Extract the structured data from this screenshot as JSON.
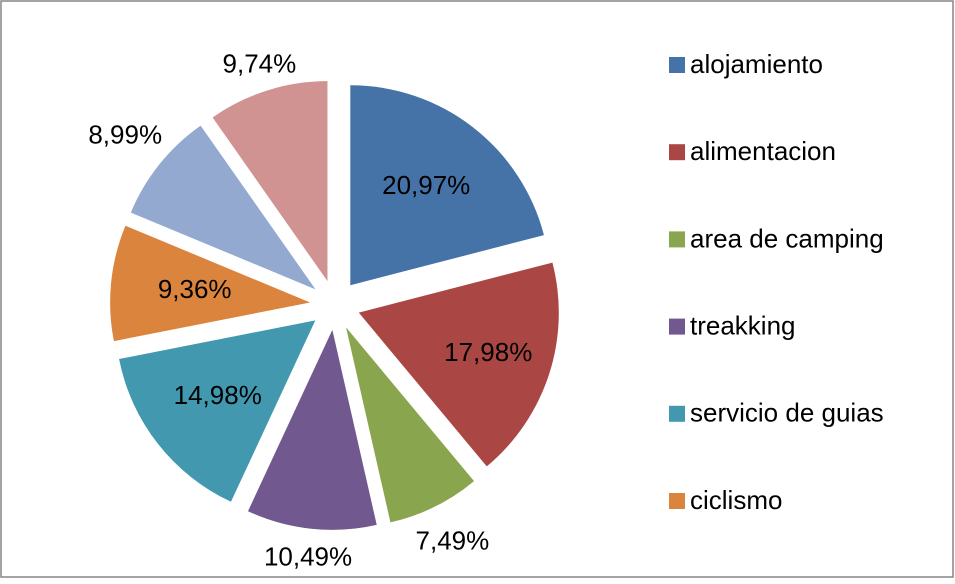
{
  "chart_data": {
    "type": "pie",
    "categories": [
      "alojamiento",
      "alimentacion",
      "area de camping",
      "treakking",
      "servicio de guias",
      "ciclismo",
      null,
      null
    ],
    "values": [
      20.97,
      17.98,
      7.49,
      10.49,
      14.98,
      9.36,
      8.99,
      9.74
    ],
    "value_labels": [
      "20,97%",
      "17,98%",
      "7,49%",
      "10,49%",
      "14,98%",
      "9,36%",
      "8,99%",
      "9,74%"
    ],
    "colors": [
      "#4572a7",
      "#aa4643",
      "#89a54e",
      "#71588f",
      "#4198af",
      "#db843d",
      "#93a9cf",
      "#d19392"
    ],
    "legend": "right"
  }
}
